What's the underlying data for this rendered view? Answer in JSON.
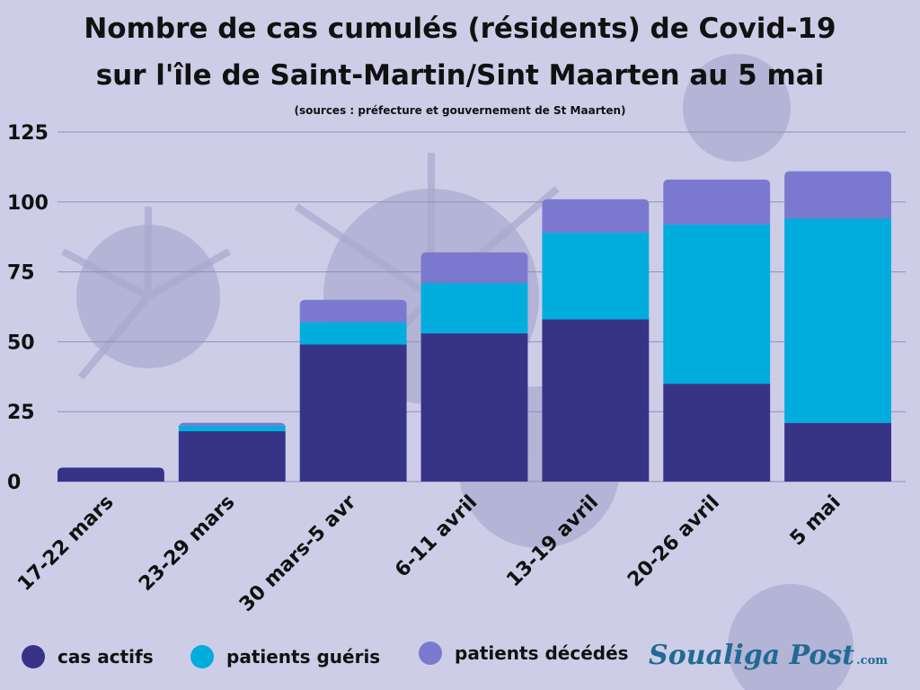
{
  "header": {
    "title_line1": "Nombre de  cas cumulés (résidents) de Covid-19",
    "title_line2": "sur l'île de Saint-Martin/Sint Maarten au 5 mai",
    "subtitle": "(sources : préfecture et gouvernement de St Maarten)"
  },
  "chart_data": {
    "type": "bar",
    "stacked": true,
    "categories": [
      "17-22 mars",
      "23-29 mars",
      "30 mars-5 avr",
      "6-11 avril",
      "13-19 avril",
      "20-26 avril",
      "5 mai"
    ],
    "series": [
      {
        "name": "cas actifs",
        "color": "#373488",
        "values": [
          5,
          18,
          49,
          53,
          58,
          35,
          21
        ]
      },
      {
        "name": "patients guéris",
        "color": "#00addc",
        "values": [
          0,
          2,
          8,
          18,
          31,
          57,
          73
        ]
      },
      {
        "name": "patients décédés",
        "color": "#7b79cf",
        "values": [
          0,
          1,
          8,
          11,
          12,
          16,
          17
        ]
      }
    ],
    "ylim": [
      0,
      125
    ],
    "yticks": [
      0,
      25,
      50,
      75,
      100,
      125
    ],
    "grid": true,
    "legend": "bottom"
  },
  "legend": [
    {
      "label": "cas actifs",
      "color": "#373488"
    },
    {
      "label": "patients guéris",
      "color": "#00addc"
    },
    {
      "label": "patients décédés",
      "color": "#7b79cf"
    }
  ],
  "brand": {
    "name": "Soualiga Post",
    "suffix": ".com",
    "color": "#1f6b93"
  }
}
